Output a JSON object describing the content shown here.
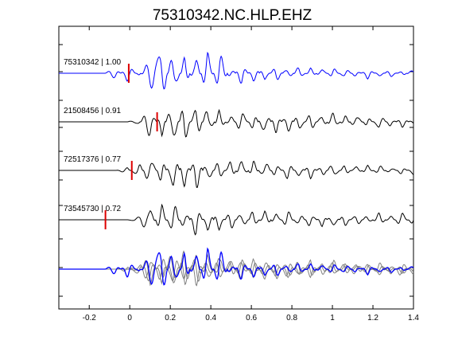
{
  "chart_data": {
    "type": "line",
    "title": "75310342.NC.HLP.EHZ",
    "xlabel": "",
    "ylabel": "",
    "xlim": [
      -0.35,
      1.4
    ],
    "x_ticks": [
      "-0.2",
      "0",
      "0.2",
      "0.4",
      "0.6",
      "0.8",
      "1",
      "1.2",
      "1.4"
    ],
    "x_tick_values": [
      -0.2,
      0,
      0.2,
      0.4,
      0.6,
      0.8,
      1.0,
      1.2,
      1.4
    ],
    "grid": false,
    "colors": {
      "reference": "#0000ff",
      "match": "#000000",
      "overlay_match": "#808080",
      "pick": "#dd0000"
    },
    "traces": [
      {
        "label": "75310342 | 1.00",
        "id": "75310342",
        "cc": 1.0,
        "pick_time": -0.005,
        "color": "#0000ff",
        "amp": [
          0,
          0,
          0,
          0,
          0,
          -0.2,
          0.3,
          -0.1,
          0.5,
          1.0,
          -0.9,
          0.6,
          -0.7,
          0.9,
          -0.8,
          0.3,
          -0.4,
          0.35,
          -0.3,
          0.3,
          -0.25,
          0.25,
          -0.2,
          0.2,
          -0.2,
          0.2,
          -0.15,
          0.2,
          -0.15,
          0.15,
          -0.1,
          0.15
        ]
      },
      {
        "label": "21508456 | 0.91",
        "id": "21508456",
        "cc": 0.91,
        "pick_time": 0.135,
        "color": "#000000",
        "amp": [
          0,
          0,
          0,
          0,
          0,
          0,
          0,
          -0.1,
          0.6,
          -0.5,
          0.9,
          -0.8,
          0.7,
          -0.6,
          0.4,
          -0.3,
          0.45,
          -0.35,
          0.5,
          -0.4,
          0.45,
          -0.4,
          0.35,
          -0.3,
          0.35,
          -0.25,
          0.3,
          -0.2,
          0.3,
          -0.2,
          0.2,
          -0.15
        ]
      },
      {
        "label": "72517376 | 0.77",
        "id": "72517376",
        "cc": 0.77,
        "pick_time": 0.01,
        "color": "#000000",
        "amp": [
          0,
          0,
          0,
          0,
          0,
          0,
          -0.1,
          0.3,
          -0.6,
          0.5,
          -0.8,
          0.7,
          -0.7,
          0.5,
          -0.4,
          0.4,
          -0.45,
          0.35,
          -0.4,
          0.3,
          -0.35,
          0.3,
          -0.3,
          0.25,
          -0.3,
          0.2,
          -0.2,
          0.2,
          -0.2,
          0.15,
          -0.15,
          0.2
        ]
      },
      {
        "label": "73545730 | 0.72",
        "id": "73545730",
        "cc": 0.72,
        "pick_time": -0.12,
        "color": "#000000",
        "amp": [
          0,
          0,
          0,
          0,
          0,
          0,
          0,
          0.1,
          0.5,
          -0.6,
          0.7,
          -0.5,
          0.6,
          -0.5,
          0.45,
          -0.4,
          0.4,
          -0.35,
          0.35,
          -0.3,
          0.35,
          -0.3,
          0.3,
          -0.25,
          0.3,
          -0.25,
          0.25,
          -0.2,
          0.25,
          -0.2,
          0.3,
          -0.25
        ]
      }
    ],
    "overlay": {
      "label": "stack",
      "description_color_order": [
        "#808080",
        "#0000ff"
      ]
    }
  }
}
